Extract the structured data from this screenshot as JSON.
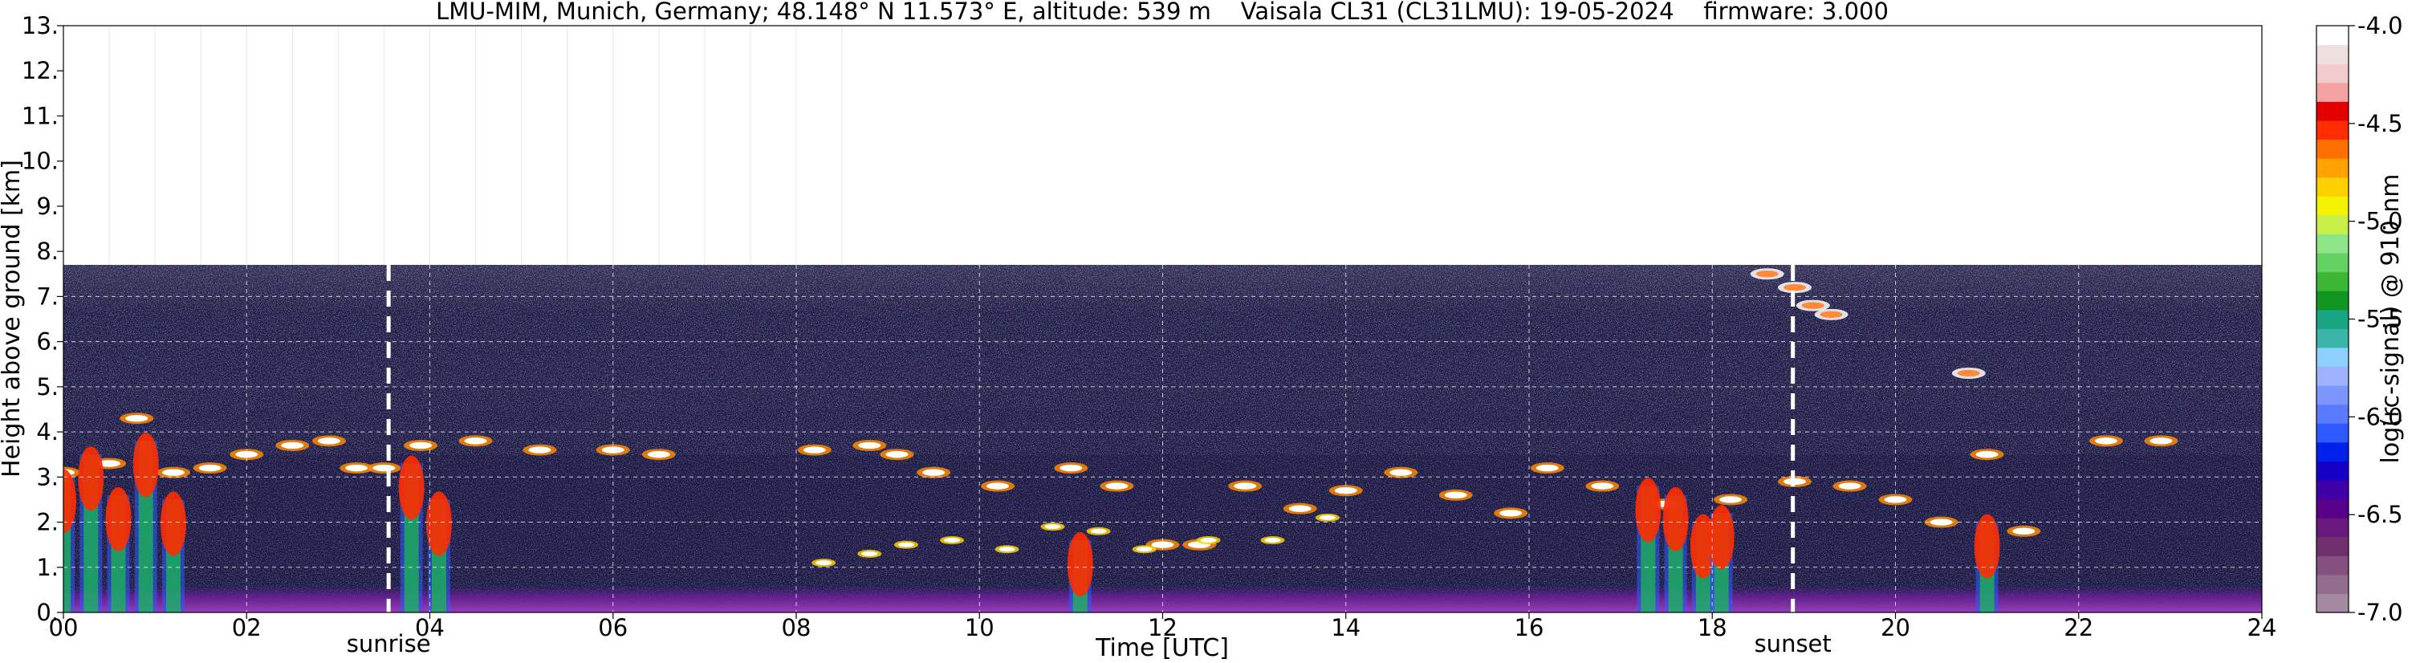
{
  "chart_data": {
    "type": "heatmap",
    "title": "LMU-MIM, Munich, Germany; 48.148° N 11.573° E, altitude: 539 m    Vaisala CL31 (CL31LMU): 19-05-2024    firmware: 3.000",
    "xlabel": "Time [UTC]",
    "ylabel": "Height above ground [km]",
    "xlim": [
      0,
      24
    ],
    "ylim": [
      0,
      13
    ],
    "x_ticks": [
      0,
      2,
      4,
      6,
      8,
      10,
      12,
      14,
      16,
      18,
      20,
      22,
      24
    ],
    "x_tick_labels": [
      "00",
      "02",
      "04",
      "06",
      "08",
      "10",
      "12",
      "14",
      "16",
      "18",
      "20",
      "22",
      "24"
    ],
    "y_ticks": [
      0,
      1,
      2,
      3,
      4,
      5,
      6,
      7,
      8,
      9,
      10,
      11,
      12,
      13
    ],
    "y_tick_labels": [
      "0.",
      "1.",
      "2.",
      "3.",
      "4.",
      "5.",
      "6.",
      "7.",
      "8.",
      "9.",
      "10.",
      "11.",
      "12.",
      "13."
    ],
    "grid": true,
    "data_top_km": 7.7,
    "events": [
      {
        "name": "sunrise",
        "time": 3.55
      },
      {
        "name": "sunset",
        "time": 18.88
      }
    ],
    "colorbar": {
      "label": "log(rc-signal) @ 910 nm",
      "range": [
        -7.0,
        -4.0
      ],
      "tick_values": [
        -4.0,
        -4.5,
        -5.0,
        -5.5,
        -6.0,
        -6.5,
        -7.0
      ],
      "tick_labels": [
        "-4.0",
        "-4.5",
        "-5.0",
        "-5.5",
        "-6.0",
        "-6.5",
        "-7.0"
      ],
      "colors": [
        "#a48aa1",
        "#936d90",
        "#83507f",
        "#70306e",
        "#6a1a7e",
        "#58008a",
        "#3f00a8",
        "#1500c8",
        "#0020ec",
        "#2e59ff",
        "#5a7aff",
        "#7d96ff",
        "#9fb2ff",
        "#8ed0ff",
        "#3bb5a7",
        "#17a583",
        "#119622",
        "#3cb734",
        "#64d263",
        "#8de589",
        "#c8ef4a",
        "#f3f300",
        "#ffd000",
        "#ffa200",
        "#ff6f00",
        "#ff2c00",
        "#e50000",
        "#f5a2a2",
        "#f2cccc",
        "#efe0e0",
        "#ffffff"
      ]
    },
    "layers": [
      {
        "name": "cloud",
        "points": [
          [
            0.0,
            3.1
          ],
          [
            0.5,
            3.3
          ],
          [
            0.8,
            4.3
          ],
          [
            1.2,
            3.1
          ],
          [
            1.6,
            3.2
          ],
          [
            2.0,
            3.5
          ],
          [
            2.5,
            3.7
          ],
          [
            2.9,
            3.8
          ],
          [
            3.2,
            3.2
          ],
          [
            3.5,
            3.2
          ],
          [
            3.9,
            3.7
          ],
          [
            4.5,
            3.8
          ],
          [
            5.2,
            3.6
          ],
          [
            6.0,
            3.6
          ],
          [
            6.5,
            3.5
          ],
          [
            8.2,
            3.6
          ],
          [
            8.8,
            3.7
          ],
          [
            9.1,
            3.5
          ],
          [
            9.5,
            3.1
          ],
          [
            10.2,
            2.8
          ],
          [
            11.0,
            3.2
          ],
          [
            11.5,
            2.8
          ],
          [
            12.0,
            1.5
          ],
          [
            12.4,
            1.5
          ],
          [
            12.9,
            2.8
          ],
          [
            13.5,
            2.3
          ],
          [
            14.0,
            2.7
          ],
          [
            14.6,
            3.1
          ],
          [
            15.2,
            2.6
          ],
          [
            15.8,
            2.2
          ],
          [
            16.2,
            3.2
          ],
          [
            16.8,
            2.8
          ],
          [
            17.5,
            2.4
          ],
          [
            18.2,
            2.5
          ],
          [
            18.9,
            2.9
          ],
          [
            19.5,
            2.8
          ],
          [
            20.0,
            2.5
          ],
          [
            20.5,
            2.0
          ],
          [
            21.0,
            3.5
          ],
          [
            21.4,
            1.8
          ],
          [
            22.3,
            3.8
          ],
          [
            22.9,
            3.8
          ]
        ]
      },
      {
        "name": "cloud-low",
        "points": [
          [
            8.3,
            1.1
          ],
          [
            8.8,
            1.3
          ],
          [
            9.2,
            1.5
          ],
          [
            9.7,
            1.6
          ],
          [
            10.3,
            1.4
          ],
          [
            10.8,
            1.9
          ],
          [
            11.3,
            1.8
          ],
          [
            11.8,
            1.4
          ],
          [
            12.5,
            1.6
          ],
          [
            13.2,
            1.6
          ],
          [
            13.8,
            2.1
          ]
        ]
      },
      {
        "name": "precipitation",
        "points": [
          [
            0.0,
            3.0
          ],
          [
            0.3,
            3.5
          ],
          [
            0.6,
            2.6
          ],
          [
            0.9,
            3.8
          ],
          [
            1.2,
            2.5
          ],
          [
            3.8,
            3.3
          ],
          [
            4.1,
            2.5
          ],
          [
            17.3,
            2.8
          ],
          [
            17.6,
            2.6
          ],
          [
            17.9,
            2.0
          ],
          [
            18.1,
            2.2
          ],
          [
            11.1,
            1.6
          ],
          [
            21.0,
            2.0
          ]
        ]
      },
      {
        "name": "elevated-layer",
        "points": [
          [
            18.6,
            7.5
          ],
          [
            18.9,
            7.2
          ],
          [
            19.1,
            6.8
          ],
          [
            19.3,
            6.6
          ],
          [
            20.8,
            5.3
          ]
        ]
      }
    ]
  }
}
